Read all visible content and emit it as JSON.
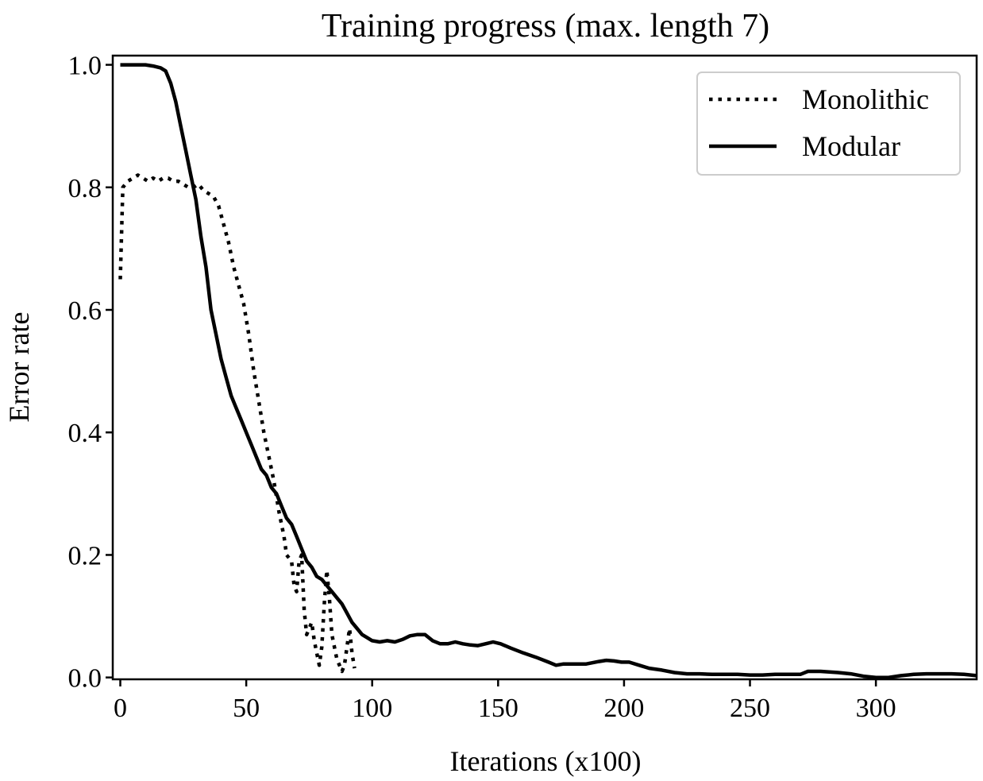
{
  "chart_data": {
    "type": "line",
    "title": "Training progress (max. length 7)",
    "xlabel": "Iterations (x100)",
    "ylabel": "Error rate",
    "xlim": [
      -3,
      340
    ],
    "ylim": [
      -0.003,
      1.015
    ],
    "xticks": [
      0,
      50,
      100,
      150,
      200,
      250,
      300
    ],
    "xtick_labels": [
      "0",
      "50",
      "100",
      "150",
      "200",
      "250",
      "300"
    ],
    "yticks": [
      0.0,
      0.2,
      0.4,
      0.6,
      0.8,
      1.0
    ],
    "ytick_labels": [
      "0.0",
      "0.2",
      "0.4",
      "0.6",
      "0.8",
      "1.0"
    ],
    "legend_position": "top-right",
    "series": [
      {
        "name": "Monolithic",
        "style": "dotted",
        "color": "#000000",
        "x": [
          0,
          1,
          2,
          3,
          5,
          7,
          9,
          11,
          13,
          15,
          17,
          19,
          21,
          23,
          25,
          27,
          29,
          31,
          33,
          35,
          37,
          39,
          41,
          43,
          45,
          47,
          49,
          51,
          53,
          55,
          57,
          59,
          61,
          63,
          65,
          66,
          67,
          68,
          69,
          70,
          71,
          72,
          73,
          74,
          75,
          76,
          77,
          78,
          79,
          80,
          81,
          82,
          83,
          84,
          85,
          86,
          87,
          88,
          89,
          90,
          91,
          92,
          93
        ],
        "y": [
          0.65,
          0.8,
          0.805,
          0.81,
          0.815,
          0.82,
          0.815,
          0.81,
          0.815,
          0.81,
          0.815,
          0.815,
          0.81,
          0.81,
          0.805,
          0.8,
          0.8,
          0.805,
          0.795,
          0.79,
          0.785,
          0.77,
          0.74,
          0.71,
          0.67,
          0.64,
          0.61,
          0.56,
          0.5,
          0.45,
          0.4,
          0.36,
          0.32,
          0.27,
          0.23,
          0.2,
          0.195,
          0.19,
          0.15,
          0.14,
          0.19,
          0.2,
          0.11,
          0.07,
          0.08,
          0.09,
          0.06,
          0.04,
          0.02,
          0.05,
          0.12,
          0.175,
          0.13,
          0.07,
          0.05,
          0.03,
          0.02,
          0.01,
          0.02,
          0.05,
          0.08,
          0.04,
          0.015
        ]
      },
      {
        "name": "Modular",
        "style": "solid",
        "color": "#000000",
        "x": [
          0,
          5,
          10,
          13,
          16,
          18,
          20,
          22,
          24,
          26,
          28,
          30,
          32,
          34,
          36,
          38,
          40,
          42,
          44,
          46,
          48,
          50,
          52,
          54,
          56,
          58,
          60,
          62,
          64,
          66,
          68,
          70,
          72,
          74,
          76,
          78,
          80,
          82,
          84,
          86,
          88,
          90,
          92,
          94,
          96,
          98,
          100,
          103,
          106,
          109,
          112,
          115,
          118,
          121,
          124,
          127,
          130,
          133,
          136,
          139,
          142,
          145,
          148,
          151,
          155,
          160,
          165,
          170,
          173,
          176,
          180,
          185,
          190,
          193,
          196,
          199,
          202,
          206,
          210,
          215,
          220,
          225,
          230,
          235,
          240,
          245,
          250,
          255,
          260,
          265,
          270,
          273,
          278,
          285,
          290,
          295,
          300,
          305,
          310,
          315,
          320,
          325,
          330,
          335,
          340
        ],
        "y": [
          1.0,
          1.0,
          1.0,
          0.998,
          0.995,
          0.99,
          0.97,
          0.94,
          0.9,
          0.86,
          0.82,
          0.78,
          0.72,
          0.67,
          0.6,
          0.56,
          0.52,
          0.49,
          0.46,
          0.44,
          0.42,
          0.4,
          0.38,
          0.36,
          0.34,
          0.33,
          0.31,
          0.3,
          0.28,
          0.26,
          0.25,
          0.23,
          0.21,
          0.19,
          0.18,
          0.165,
          0.16,
          0.15,
          0.14,
          0.13,
          0.12,
          0.105,
          0.09,
          0.08,
          0.07,
          0.065,
          0.06,
          0.058,
          0.06,
          0.058,
          0.062,
          0.068,
          0.07,
          0.07,
          0.06,
          0.055,
          0.055,
          0.058,
          0.055,
          0.053,
          0.052,
          0.055,
          0.058,
          0.055,
          0.048,
          0.04,
          0.033,
          0.025,
          0.02,
          0.022,
          0.022,
          0.022,
          0.026,
          0.028,
          0.027,
          0.025,
          0.025,
          0.02,
          0.015,
          0.012,
          0.008,
          0.006,
          0.006,
          0.005,
          0.005,
          0.005,
          0.004,
          0.004,
          0.005,
          0.005,
          0.005,
          0.01,
          0.01,
          0.008,
          0.006,
          0.002,
          0.0,
          0.0,
          0.003,
          0.005,
          0.006,
          0.006,
          0.006,
          0.005,
          0.003
        ]
      }
    ]
  }
}
